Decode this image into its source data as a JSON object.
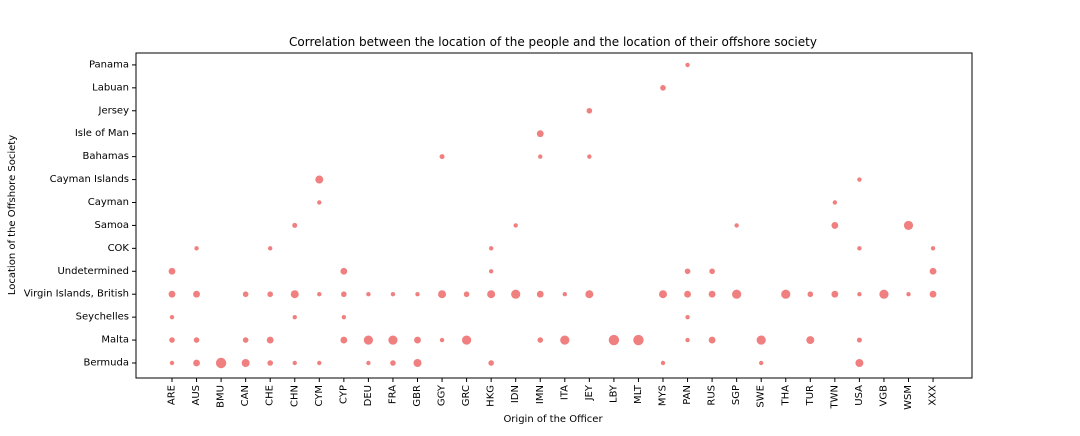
{
  "chart_data": {
    "type": "scatter",
    "title": "Correlation between the location of the people and the location of their offshore society",
    "xlabel": "Origin of the Officer",
    "ylabel": "Location of the Offshore Society",
    "grid": false,
    "marker_color": "#f08080",
    "x_categories": [
      "ARE",
      "AUS",
      "BMU",
      "CAN",
      "CHE",
      "CHN",
      "CYM",
      "CYP",
      "DEU",
      "FRA",
      "GBR",
      "GGY",
      "GRC",
      "HKG",
      "IDN",
      "IMN",
      "ITA",
      "JEY",
      "LBY",
      "MLT",
      "MYS",
      "PAN",
      "RUS",
      "SGP",
      "SWE",
      "THA",
      "TUR",
      "TWN",
      "USA",
      "VGB",
      "WSM",
      "XXX"
    ],
    "y_categories": [
      "Bermuda",
      "Malta",
      "Seychelles",
      "Virgin Islands, British",
      "Undetermined",
      "COK",
      "Samoa",
      "Cayman",
      "Cayman Islands",
      "Bahamas",
      "Isle of Man",
      "Jersey",
      "Labuan",
      "Panama"
    ],
    "points": [
      {
        "x": "ARE",
        "y": "Bermuda",
        "size": 1
      },
      {
        "x": "ARE",
        "y": "Malta",
        "size": 2
      },
      {
        "x": "ARE",
        "y": "Seychelles",
        "size": 1
      },
      {
        "x": "ARE",
        "y": "Virgin Islands, British",
        "size": 3
      },
      {
        "x": "ARE",
        "y": "Undetermined",
        "size": 3
      },
      {
        "x": "AUS",
        "y": "Bermuda",
        "size": 3
      },
      {
        "x": "AUS",
        "y": "Malta",
        "size": 2
      },
      {
        "x": "AUS",
        "y": "Virgin Islands, British",
        "size": 3
      },
      {
        "x": "AUS",
        "y": "COK",
        "size": 1
      },
      {
        "x": "BMU",
        "y": "Bermuda",
        "size": 6
      },
      {
        "x": "CAN",
        "y": "Bermuda",
        "size": 4
      },
      {
        "x": "CAN",
        "y": "Malta",
        "size": 2
      },
      {
        "x": "CAN",
        "y": "Virgin Islands, British",
        "size": 2
      },
      {
        "x": "CHE",
        "y": "Bermuda",
        "size": 2
      },
      {
        "x": "CHE",
        "y": "Malta",
        "size": 3
      },
      {
        "x": "CHE",
        "y": "Virgin Islands, British",
        "size": 2
      },
      {
        "x": "CHE",
        "y": "COK",
        "size": 1
      },
      {
        "x": "CHN",
        "y": "Bermuda",
        "size": 1
      },
      {
        "x": "CHN",
        "y": "Seychelles",
        "size": 1
      },
      {
        "x": "CHN",
        "y": "Virgin Islands, British",
        "size": 4
      },
      {
        "x": "CHN",
        "y": "Samoa",
        "size": 1.5
      },
      {
        "x": "CYM",
        "y": "Bermuda",
        "size": 1
      },
      {
        "x": "CYM",
        "y": "Virgin Islands, British",
        "size": 1
      },
      {
        "x": "CYM",
        "y": "Cayman",
        "size": 1
      },
      {
        "x": "CYM",
        "y": "Cayman Islands",
        "size": 4
      },
      {
        "x": "CYP",
        "y": "Malta",
        "size": 3
      },
      {
        "x": "CYP",
        "y": "Seychelles",
        "size": 1
      },
      {
        "x": "CYP",
        "y": "Virgin Islands, British",
        "size": 2
      },
      {
        "x": "CYP",
        "y": "Undetermined",
        "size": 3
      },
      {
        "x": "DEU",
        "y": "Bermuda",
        "size": 1
      },
      {
        "x": "DEU",
        "y": "Malta",
        "size": 5
      },
      {
        "x": "DEU",
        "y": "Virgin Islands, British",
        "size": 1
      },
      {
        "x": "FRA",
        "y": "Bermuda",
        "size": 2
      },
      {
        "x": "FRA",
        "y": "Malta",
        "size": 5
      },
      {
        "x": "FRA",
        "y": "Virgin Islands, British",
        "size": 1
      },
      {
        "x": "GBR",
        "y": "Bermuda",
        "size": 4
      },
      {
        "x": "GBR",
        "y": "Malta",
        "size": 3
      },
      {
        "x": "GBR",
        "y": "Virgin Islands, British",
        "size": 1
      },
      {
        "x": "GGY",
        "y": "Malta",
        "size": 1
      },
      {
        "x": "GGY",
        "y": "Virgin Islands, British",
        "size": 4
      },
      {
        "x": "GGY",
        "y": "Bahamas",
        "size": 1.5
      },
      {
        "x": "GRC",
        "y": "Malta",
        "size": 5
      },
      {
        "x": "GRC",
        "y": "Virgin Islands, British",
        "size": 2
      },
      {
        "x": "HKG",
        "y": "Bermuda",
        "size": 2
      },
      {
        "x": "HKG",
        "y": "Virgin Islands, British",
        "size": 4
      },
      {
        "x": "HKG",
        "y": "Undetermined",
        "size": 1
      },
      {
        "x": "HKG",
        "y": "COK",
        "size": 1
      },
      {
        "x": "IDN",
        "y": "Virgin Islands, British",
        "size": 5
      },
      {
        "x": "IDN",
        "y": "Samoa",
        "size": 1
      },
      {
        "x": "IMN",
        "y": "Malta",
        "size": 2
      },
      {
        "x": "IMN",
        "y": "Virgin Islands, British",
        "size": 3
      },
      {
        "x": "IMN",
        "y": "Bahamas",
        "size": 1
      },
      {
        "x": "IMN",
        "y": "Isle of Man",
        "size": 3
      },
      {
        "x": "ITA",
        "y": "Malta",
        "size": 5
      },
      {
        "x": "ITA",
        "y": "Virgin Islands, British",
        "size": 1
      },
      {
        "x": "JEY",
        "y": "Virgin Islands, British",
        "size": 4
      },
      {
        "x": "JEY",
        "y": "Bahamas",
        "size": 1
      },
      {
        "x": "JEY",
        "y": "Jersey",
        "size": 2
      },
      {
        "x": "LBY",
        "y": "Malta",
        "size": 6
      },
      {
        "x": "MLT",
        "y": "Malta",
        "size": 6
      },
      {
        "x": "MYS",
        "y": "Bermuda",
        "size": 1
      },
      {
        "x": "MYS",
        "y": "Virgin Islands, British",
        "size": 4
      },
      {
        "x": "MYS",
        "y": "Labuan",
        "size": 2
      },
      {
        "x": "PAN",
        "y": "Malta",
        "size": 1
      },
      {
        "x": "PAN",
        "y": "Seychelles",
        "size": 1
      },
      {
        "x": "PAN",
        "y": "Virgin Islands, British",
        "size": 3
      },
      {
        "x": "PAN",
        "y": "Undetermined",
        "size": 2
      },
      {
        "x": "PAN",
        "y": "Panama",
        "size": 1
      },
      {
        "x": "RUS",
        "y": "Malta",
        "size": 3
      },
      {
        "x": "RUS",
        "y": "Virgin Islands, British",
        "size": 3
      },
      {
        "x": "RUS",
        "y": "Undetermined",
        "size": 2
      },
      {
        "x": "SGP",
        "y": "Virgin Islands, British",
        "size": 5
      },
      {
        "x": "SGP",
        "y": "Samoa",
        "size": 1
      },
      {
        "x": "SWE",
        "y": "Bermuda",
        "size": 1
      },
      {
        "x": "SWE",
        "y": "Malta",
        "size": 5
      },
      {
        "x": "THA",
        "y": "Virgin Islands, British",
        "size": 5
      },
      {
        "x": "TUR",
        "y": "Malta",
        "size": 4
      },
      {
        "x": "TUR",
        "y": "Virgin Islands, British",
        "size": 2
      },
      {
        "x": "TWN",
        "y": "Virgin Islands, British",
        "size": 3
      },
      {
        "x": "TWN",
        "y": "Samoa",
        "size": 3
      },
      {
        "x": "TWN",
        "y": "Cayman",
        "size": 1
      },
      {
        "x": "USA",
        "y": "Bermuda",
        "size": 4
      },
      {
        "x": "USA",
        "y": "Malta",
        "size": 1.5
      },
      {
        "x": "USA",
        "y": "Virgin Islands, British",
        "size": 1
      },
      {
        "x": "USA",
        "y": "COK",
        "size": 1
      },
      {
        "x": "USA",
        "y": "Cayman Islands",
        "size": 1
      },
      {
        "x": "VGB",
        "y": "Virgin Islands, British",
        "size": 5
      },
      {
        "x": "WSM",
        "y": "Virgin Islands, British",
        "size": 1
      },
      {
        "x": "WSM",
        "y": "Samoa",
        "size": 5
      },
      {
        "x": "XXX",
        "y": "Virgin Islands, British",
        "size": 3
      },
      {
        "x": "XXX",
        "y": "Undetermined",
        "size": 3
      },
      {
        "x": "XXX",
        "y": "COK",
        "size": 1
      }
    ]
  }
}
